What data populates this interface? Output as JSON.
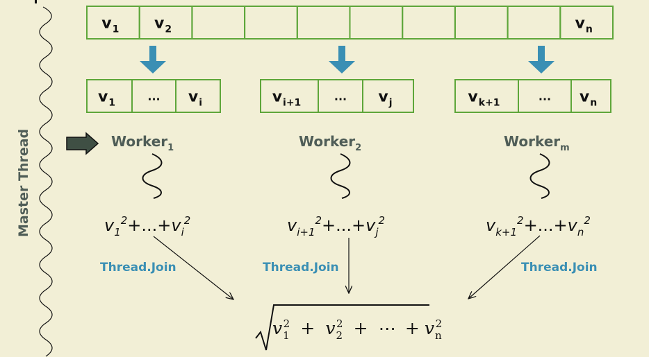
{
  "colors": {
    "background": "#f2efd6",
    "cell_border": "#5ea63a",
    "arrow_blue": "#3a8fb4",
    "worker_text": "#4f5d57",
    "join_text": "#3a8fb4",
    "pointer_fill": "#3f4f44"
  },
  "master_thread_label": "Master Thread",
  "top_vector": {
    "cells": [
      {
        "base": "v",
        "sub": "1"
      },
      {
        "base": "v",
        "sub": "2"
      },
      {
        "base": "",
        "sub": ""
      },
      {
        "base": "",
        "sub": ""
      },
      {
        "base": "",
        "sub": ""
      },
      {
        "base": "",
        "sub": ""
      },
      {
        "base": "",
        "sub": ""
      },
      {
        "base": "",
        "sub": ""
      },
      {
        "base": "",
        "sub": ""
      },
      {
        "base": "v",
        "sub": "n"
      }
    ]
  },
  "chunks": [
    {
      "cells": [
        {
          "base": "v",
          "sub": "1"
        },
        {
          "dots": "..."
        },
        {
          "base": "v",
          "sub": "i"
        }
      ],
      "worker": {
        "label": "Worker",
        "sub": "1"
      },
      "sum_terms": {
        "first_sub": "1",
        "last_sub": "i",
        "sup": "2",
        "mid": "+...+"
      },
      "join_label": "Thread.Join"
    },
    {
      "cells": [
        {
          "base": "v",
          "sub": "i+1"
        },
        {
          "dots": "..."
        },
        {
          "base": "v",
          "sub": "j"
        }
      ],
      "worker": {
        "label": "Worker",
        "sub": "2"
      },
      "sum_terms": {
        "first_sub": "i+1",
        "last_sub": "j",
        "sup": "2",
        "mid": "+...+"
      },
      "join_label": "Thread.Join"
    },
    {
      "cells": [
        {
          "base": "v",
          "sub": "k+1"
        },
        {
          "dots": "..."
        },
        {
          "base": "v",
          "sub": "n"
        }
      ],
      "worker": {
        "label": "Worker",
        "sub": "m"
      },
      "sum_terms": {
        "first_sub": "k+1",
        "last_sub": "n",
        "sup": "2",
        "mid": "+...+"
      },
      "join_label": "Thread.Join"
    }
  ],
  "result_formula": {
    "terms": [
      {
        "base": "v",
        "sub": "1",
        "sup": "2"
      },
      {
        "base": "v",
        "sub": "2",
        "sup": "2"
      },
      {
        "base": "v",
        "sub": "n",
        "sup": "2"
      }
    ],
    "plus": "+",
    "ellipsis": "⋯"
  }
}
